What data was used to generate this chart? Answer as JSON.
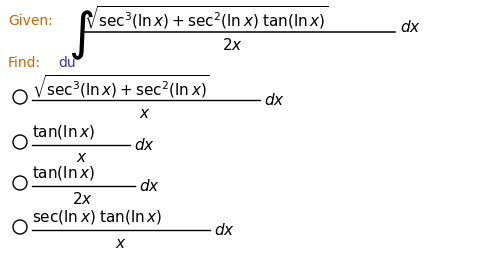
{
  "bg_color": "#ffffff",
  "given_label_color": "#cc6600",
  "find_label_color": "#cc6600",
  "find_du_color": "#3333cc",
  "text_color": "#000000",
  "given_label": "Given:",
  "find_label": "Find:",
  "find_var": "du",
  "fig_width": 5.03,
  "fig_height": 2.63,
  "dpi": 100
}
